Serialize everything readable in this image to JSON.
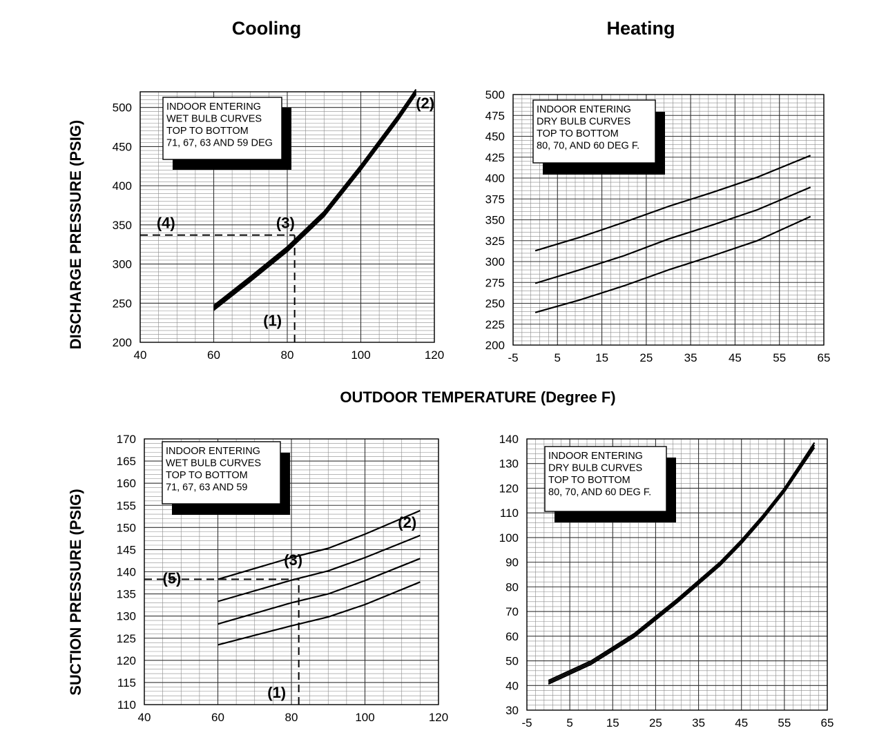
{
  "titles": {
    "cooling": "Cooling",
    "heating": "Heating",
    "x_axis": "OUTDOOR TEMPERATURE (Degree F)",
    "y_axis_top": "DISCHARGE PRESSURE (PSIG)",
    "y_axis_bottom": "SUCTION PRESSURE (PSIG)"
  },
  "chart_data": [
    {
      "id": "cooling-discharge",
      "type": "line",
      "title": "Cooling",
      "xlabel": "OUTDOOR TEMPERATURE (Degree F)",
      "ylabel": "DISCHARGE PRESSURE (PSIG)",
      "xlim": [
        40,
        120
      ],
      "ylim": [
        200,
        520
      ],
      "x_ticks": [
        40,
        60,
        80,
        100,
        120
      ],
      "y_ticks": [
        200,
        250,
        300,
        350,
        400,
        450,
        500
      ],
      "x_minor": 4,
      "y_minor": 10,
      "grid": true,
      "note": {
        "lines": [
          "INDOOR ENTERING",
          "WET BULB CURVES",
          "TOP TO BOTTOM",
          "71, 67, 63 AND 59 DEG"
        ],
        "position": "top-left"
      },
      "series": [
        {
          "name": "71",
          "x": [
            60,
            70,
            80,
            90,
            100,
            110,
            115
          ],
          "y": [
            247,
            284,
            322,
            367,
            426,
            489,
            523
          ]
        },
        {
          "name": "67",
          "x": [
            60,
            70,
            80,
            90,
            100,
            110,
            115
          ],
          "y": [
            245,
            282,
            320,
            365,
            424,
            487,
            521
          ]
        },
        {
          "name": "63",
          "x": [
            60,
            70,
            80,
            90,
            100,
            110,
            115
          ],
          "y": [
            243,
            280,
            318,
            363,
            422,
            485,
            519
          ]
        },
        {
          "name": "59",
          "x": [
            60,
            70,
            80,
            90,
            100,
            110,
            115
          ],
          "y": [
            241,
            278,
            316,
            361,
            420,
            483,
            517
          ]
        }
      ],
      "guides": [
        {
          "x1": 40,
          "y1": 337,
          "x2": 82,
          "y2": 337
        },
        {
          "x1": 82,
          "y1": 200,
          "x2": 82,
          "y2": 337
        }
      ],
      "markers": [
        {
          "label": "(1)",
          "x": 76,
          "y": 228
        },
        {
          "label": "(2)",
          "x": 117.5,
          "y": 506
        },
        {
          "label": "(3)",
          "x": 79.5,
          "y": 353
        },
        {
          "label": "(4)",
          "x": 47,
          "y": 353
        }
      ]
    },
    {
      "id": "heating-discharge",
      "type": "line",
      "title": "Heating",
      "xlabel": "OUTDOOR TEMPERATURE (Degree F)",
      "ylabel": "DISCHARGE PRESSURE (PSIG)",
      "xlim": [
        -5,
        65
      ],
      "ylim": [
        200,
        500
      ],
      "x_ticks": [
        -5,
        5,
        15,
        25,
        35,
        45,
        55,
        65
      ],
      "y_ticks": [
        200,
        225,
        250,
        275,
        300,
        325,
        350,
        375,
        400,
        425,
        450,
        475,
        500
      ],
      "x_minor": 5,
      "y_minor": 5,
      "grid": true,
      "note": {
        "lines": [
          "INDOOR ENTERING",
          "DRY BULB CURVES",
          "TOP TO BOTTOM",
          "80, 70, AND 60 DEG F."
        ],
        "position": "top-left"
      },
      "series": [
        {
          "name": "80",
          "x": [
            0,
            10,
            20,
            30,
            40,
            50,
            62
          ],
          "y": [
            313,
            329,
            347,
            366,
            383,
            401,
            427
          ]
        },
        {
          "name": "70",
          "x": [
            0,
            10,
            20,
            30,
            40,
            50,
            62
          ],
          "y": [
            274,
            290,
            307,
            327,
            344,
            362,
            389
          ]
        },
        {
          "name": "60",
          "x": [
            0,
            10,
            20,
            30,
            40,
            50,
            62
          ],
          "y": [
            239,
            254,
            271,
            290,
            307,
            325,
            354
          ]
        }
      ],
      "guides": [],
      "markers": []
    },
    {
      "id": "cooling-suction",
      "type": "line",
      "title": "Cooling",
      "xlabel": "OUTDOOR TEMPERATURE (Degree F)",
      "ylabel": "SUCTION PRESSURE (PSIG)",
      "xlim": [
        40,
        120
      ],
      "ylim": [
        110,
        170
      ],
      "x_ticks": [
        40,
        60,
        80,
        100,
        120
      ],
      "y_ticks": [
        110,
        115,
        120,
        125,
        130,
        135,
        140,
        145,
        150,
        155,
        160,
        165,
        170
      ],
      "x_minor": 4,
      "y_minor": 5,
      "grid": true,
      "note": {
        "lines": [
          "INDOOR ENTERING",
          "WET BULB CURVES",
          "TOP TO BOTTOM",
          "71, 67, 63 AND 59"
        ],
        "position": "top-left"
      },
      "series": [
        {
          "name": "71",
          "x": [
            60,
            80,
            90,
            100,
            115
          ],
          "y": [
            138.3,
            143.2,
            145.3,
            148.5,
            153.8
          ]
        },
        {
          "name": "67",
          "x": [
            60,
            80,
            90,
            100,
            115
          ],
          "y": [
            133.3,
            138.1,
            140.2,
            143.2,
            148.2
          ]
        },
        {
          "name": "63",
          "x": [
            60,
            80,
            90,
            100,
            115
          ],
          "y": [
            128.2,
            133.0,
            135.0,
            138.0,
            143.0
          ]
        },
        {
          "name": "59",
          "x": [
            60,
            80,
            90,
            100,
            115
          ],
          "y": [
            123.5,
            127.8,
            129.8,
            132.6,
            137.7
          ]
        }
      ],
      "guides": [
        {
          "x1": 40,
          "y1": 138.3,
          "x2": 82,
          "y2": 138.3
        },
        {
          "x1": 82,
          "y1": 110,
          "x2": 82,
          "y2": 138.3
        }
      ],
      "markers": [
        {
          "label": "(1)",
          "x": 76,
          "y": 112.8
        },
        {
          "label": "(2)",
          "x": 111.5,
          "y": 151.2
        },
        {
          "label": "(3)",
          "x": 80.5,
          "y": 142.7
        },
        {
          "label": "(5)",
          "x": 47.5,
          "y": 138.6
        }
      ]
    },
    {
      "id": "heating-suction",
      "type": "line",
      "title": "Heating",
      "xlabel": "OUTDOOR TEMPERATURE (Degree F)",
      "ylabel": "SUCTION PRESSURE (PSIG)",
      "xlim": [
        -5,
        65
      ],
      "ylim": [
        30,
        140
      ],
      "x_ticks": [
        -5,
        5,
        15,
        25,
        35,
        45,
        55,
        65
      ],
      "y_ticks": [
        30,
        40,
        50,
        60,
        70,
        80,
        90,
        100,
        110,
        120,
        130,
        140
      ],
      "x_minor": 5,
      "y_minor": 5,
      "grid": true,
      "note": {
        "lines": [
          "INDOOR ENTERING",
          "DRY BULB CURVES",
          "TOP TO BOTTOM",
          "80, 70, AND 60 DEG F."
        ],
        "position": "top-left"
      },
      "series": [
        {
          "name": "80",
          "x": [
            0,
            10,
            20,
            30,
            40,
            45,
            50,
            55,
            62
          ],
          "y": [
            42,
            50,
            61,
            75,
            90,
            99,
            109,
            120,
            138.5
          ]
        },
        {
          "name": "70",
          "x": [
            0,
            10,
            20,
            30,
            40,
            45,
            50,
            55,
            62
          ],
          "y": [
            41.3,
            49.3,
            60.3,
            74.3,
            89.3,
            98.3,
            108.3,
            119.3,
            137.5
          ]
        },
        {
          "name": "60",
          "x": [
            0,
            10,
            20,
            30,
            40,
            45,
            50,
            55,
            62
          ],
          "y": [
            40.6,
            48.6,
            59.6,
            73.6,
            88.6,
            97.6,
            107.6,
            118.6,
            136.5
          ]
        }
      ],
      "guides": [],
      "markers": []
    }
  ]
}
